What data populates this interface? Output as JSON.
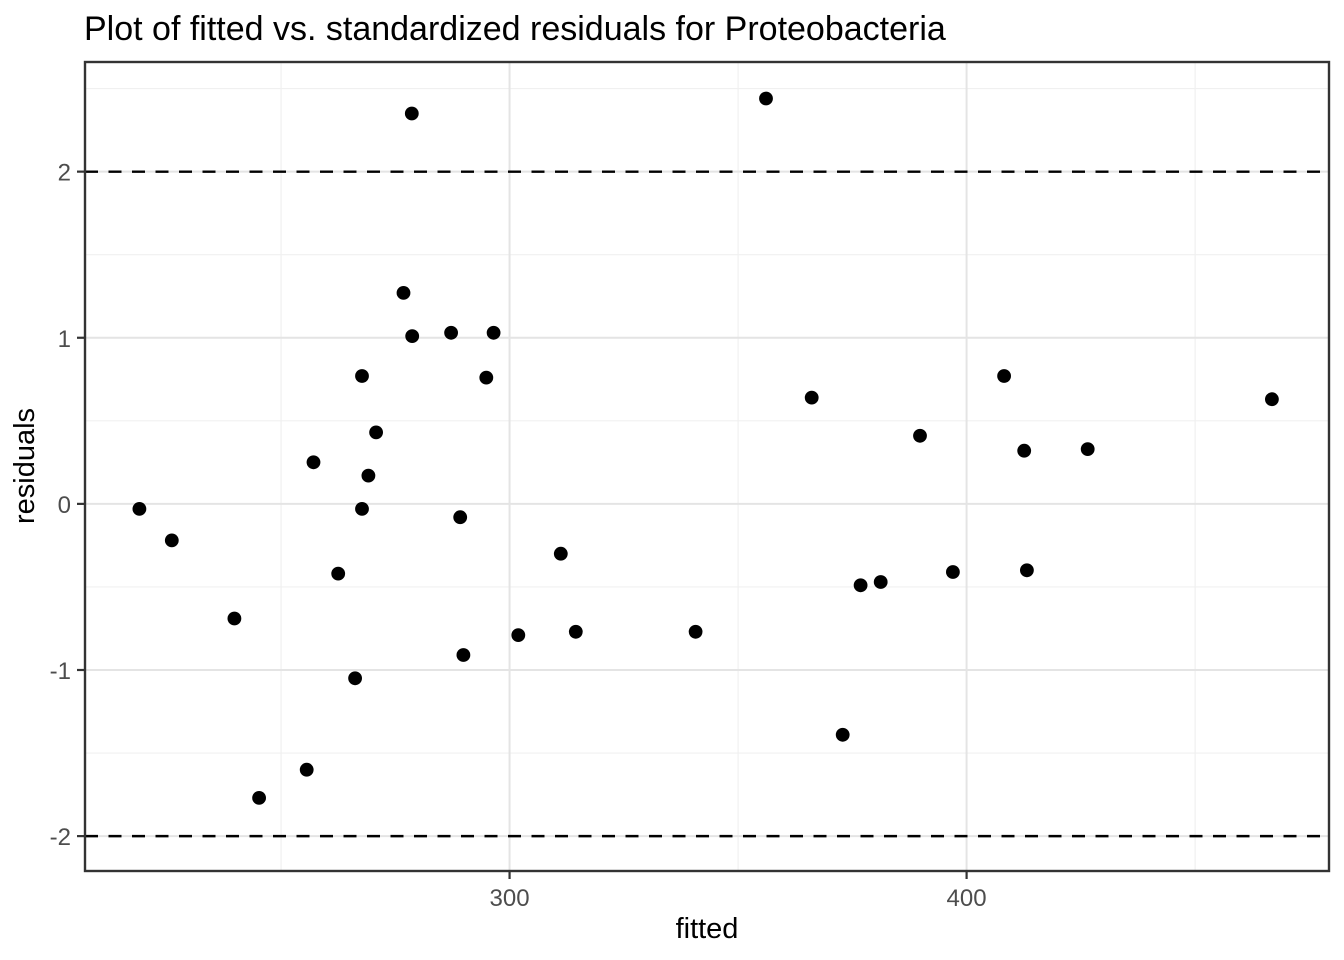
{
  "chart_data": {
    "type": "scatter",
    "title": "Plot of fitted vs. standardized residuals for Proteobacteria",
    "xlabel": "fitted",
    "ylabel": "residuals",
    "legend": "none",
    "grid": "major+minor",
    "x_axis": {
      "range": [
        207.1,
        479.3
      ],
      "major_ticks": [
        300,
        400
      ],
      "minor_ticks": [
        250,
        350,
        450
      ]
    },
    "y_axis": {
      "range": [
        -2.21,
        2.66
      ],
      "major_ticks": [
        2,
        1,
        0,
        -1,
        -2
      ],
      "minor_ticks": [
        2.5,
        1.5,
        0.5,
        -0.5,
        -1.5
      ]
    },
    "reference_lines": [
      {
        "axis": "y",
        "value": 2,
        "style": "dashed",
        "color": "#000000"
      },
      {
        "axis": "y",
        "value": -2,
        "style": "dashed",
        "color": "#000000"
      }
    ],
    "point_style": {
      "shape": "circle",
      "color": "#000000",
      "radius_px": 6.9
    },
    "points": [
      [
        219.0,
        -0.03
      ],
      [
        226.1,
        -0.22
      ],
      [
        239.8,
        -0.69
      ],
      [
        245.2,
        -1.77
      ],
      [
        255.6,
        -1.6
      ],
      [
        257.1,
        0.25
      ],
      [
        262.5,
        -0.42
      ],
      [
        266.2,
        -1.05
      ],
      [
        267.7,
        0.77
      ],
      [
        267.7,
        -0.03
      ],
      [
        269.1,
        0.17
      ],
      [
        270.8,
        0.43
      ],
      [
        276.8,
        1.27
      ],
      [
        278.6,
        2.35
      ],
      [
        278.7,
        1.01
      ],
      [
        287.2,
        1.03
      ],
      [
        289.2,
        -0.08
      ],
      [
        289.9,
        -0.91
      ],
      [
        294.9,
        0.76
      ],
      [
        296.5,
        1.03
      ],
      [
        301.9,
        -0.79
      ],
      [
        311.2,
        -0.3
      ],
      [
        314.5,
        -0.77
      ],
      [
        340.7,
        -0.77
      ],
      [
        356.1,
        2.44
      ],
      [
        366.1,
        0.64
      ],
      [
        372.9,
        -1.39
      ],
      [
        376.8,
        -0.49
      ],
      [
        381.2,
        -0.47
      ],
      [
        389.8,
        0.41
      ],
      [
        397.0,
        -0.41
      ],
      [
        408.2,
        0.77
      ],
      [
        412.6,
        0.32
      ],
      [
        413.2,
        -0.4
      ],
      [
        426.5,
        0.33
      ],
      [
        466.8,
        0.63
      ]
    ]
  },
  "colors": {
    "background": "#ffffff",
    "panel_background": "#ffffff",
    "panel_border": "#333333",
    "grid_major": "#e4e4e4",
    "grid_minor": "#f0f0f0",
    "axis_tick": "#333333",
    "tick_label": "#4d4d4d",
    "text": "#000000",
    "point": "#000000"
  }
}
